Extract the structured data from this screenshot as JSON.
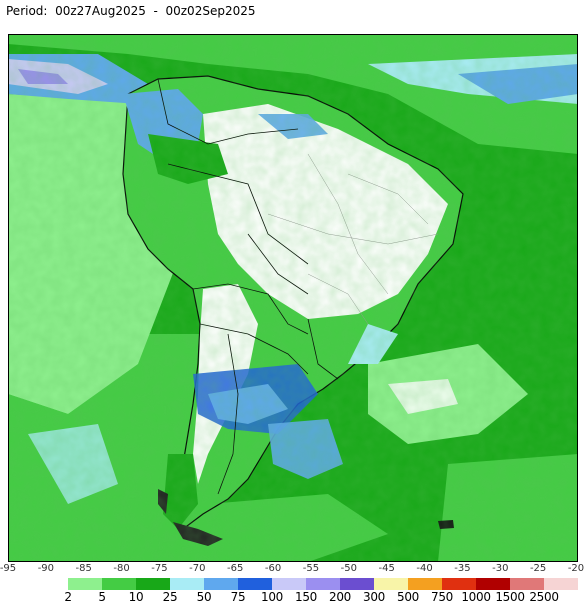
{
  "header": {
    "period_text": "Period:  00z27Aug2025  -  00z02Sep2025"
  },
  "map": {
    "region": "South America",
    "variable": "accumulated precipitation",
    "longitude_labels": [
      "-95",
      "-90",
      "-85",
      "-80",
      "-75",
      "-70",
      "-65",
      "-60",
      "-55",
      "-50",
      "-45",
      "-40",
      "-35",
      "-30",
      "-25",
      "-20"
    ]
  },
  "legend": {
    "labels": [
      "2",
      "5",
      "10",
      "25",
      "50",
      "75",
      "100",
      "150",
      "200",
      "300",
      "500",
      "750",
      "1000",
      "1500",
      "2500"
    ],
    "colors": [
      "#8ef08e",
      "#44cc44",
      "#18a818",
      "#a9ecf5",
      "#5fa8ee",
      "#2060dd",
      "#c9c9f8",
      "#9b8ff0",
      "#6b4ed0",
      "#f8f4a8",
      "#f4a020",
      "#e03010",
      "#b00000",
      "#e07878",
      "#f6d4d4"
    ]
  }
}
